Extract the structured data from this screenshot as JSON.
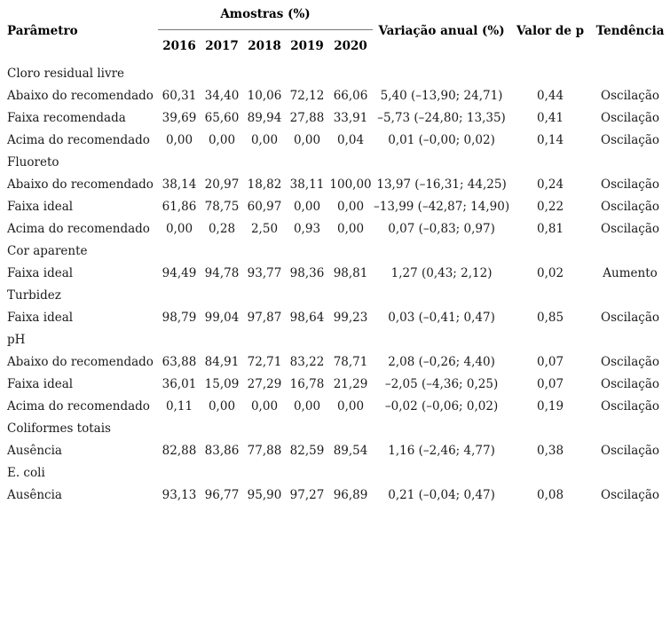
{
  "table": {
    "header": {
      "param": "Parâmetro",
      "amostras": "Amostras (%)",
      "years": [
        "2016",
        "2017",
        "2018",
        "2019",
        "2020"
      ],
      "variacao": "Variação anual (%)",
      "valor_p": "Valor de p",
      "tendencia": "Tendência"
    },
    "sections": [
      {
        "name": "Cloro residual livre",
        "rows": [
          {
            "label": "Abaixo do recomendado",
            "values": [
              "60,31",
              "34,40",
              "10,06",
              "72,12",
              "66,06"
            ],
            "variacao": "5,40 (–13,90; 24,71)",
            "p": "0,44",
            "tendencia": "Oscilação"
          },
          {
            "label": "Faixa recomendada",
            "values": [
              "39,69",
              "65,60",
              "89,94",
              "27,88",
              "33,91"
            ],
            "variacao": "–5,73 (–24,80; 13,35)",
            "p": "0,41",
            "tendencia": "Oscilação"
          },
          {
            "label": "Acima do recomendado",
            "values": [
              "0,00",
              "0,00",
              "0,00",
              "0,00",
              "0,04"
            ],
            "variacao": "0,01 (–0,00; 0,02)",
            "p": "0,14",
            "tendencia": "Oscilação"
          }
        ]
      },
      {
        "name": "Fluoreto",
        "rows": [
          {
            "label": "Abaixo do recomendado",
            "values": [
              "38,14",
              "20,97",
              "18,82",
              "38,11",
              "100,00"
            ],
            "variacao": "13,97 (–16,31; 44,25)",
            "p": "0,24",
            "tendencia": "Oscilação"
          },
          {
            "label": "Faixa ideal",
            "values": [
              "61,86",
              "78,75",
              "60,97",
              "0,00",
              "0,00"
            ],
            "variacao": "–13,99 (–42,87; 14,90)",
            "p": "0,22",
            "tendencia": "Oscilação"
          },
          {
            "label": "Acima do recomendado",
            "values": [
              "0,00",
              "0,28",
              "2,50",
              "0,93",
              "0,00"
            ],
            "variacao": "0,07 (–0,83; 0,97)",
            "p": "0,81",
            "tendencia": "Oscilação"
          }
        ]
      },
      {
        "name": "Cor aparente",
        "rows": [
          {
            "label": "Faixa ideal",
            "values": [
              "94,49",
              "94,78",
              "93,77",
              "98,36",
              "98,81"
            ],
            "variacao": "1,27 (0,43; 2,12)",
            "p": "0,02",
            "tendencia": "Aumento"
          }
        ]
      },
      {
        "name": "Turbidez",
        "rows": [
          {
            "label": "Faixa ideal",
            "values": [
              "98,79",
              "99,04",
              "97,87",
              "98,64",
              "99,23"
            ],
            "variacao": "0,03 (–0,41; 0,47)",
            "p": "0,85",
            "tendencia": "Oscilação"
          }
        ]
      },
      {
        "name": "pH",
        "rows": [
          {
            "label": "Abaixo do recomendado",
            "values": [
              "63,88",
              "84,91",
              "72,71",
              "83,22",
              "78,71"
            ],
            "variacao": "2,08 (–0,26; 4,40)",
            "p": "0,07",
            "tendencia": "Oscilação"
          },
          {
            "label": "Faixa ideal",
            "values": [
              "36,01",
              "15,09",
              "27,29",
              "16,78",
              "21,29"
            ],
            "variacao": "–2,05 (–4,36; 0,25)",
            "p": "0,07",
            "tendencia": "Oscilação"
          },
          {
            "label": "Acima do recomendado",
            "values": [
              "0,11",
              "0,00",
              "0,00",
              "0,00",
              "0,00"
            ],
            "variacao": "–0,02 (–0,06; 0,02)",
            "p": "0,19",
            "tendencia": "Oscilação"
          }
        ]
      },
      {
        "name": "Coliformes totais",
        "rows": [
          {
            "label": "Ausência",
            "values": [
              "82,88",
              "83,86",
              "77,88",
              "82,59",
              "89,54"
            ],
            "variacao": "1,16 (–2,46; 4,77)",
            "p": "0,38",
            "tendencia": "Oscilação"
          }
        ]
      },
      {
        "name": "E. coli",
        "rows": [
          {
            "label": "Ausência",
            "values": [
              "93,13",
              "96,77",
              "95,90",
              "97,27",
              "96,89"
            ],
            "variacao": "0,21 (–0,04; 0,47)",
            "p": "0,08",
            "tendencia": "Oscilação"
          }
        ]
      }
    ]
  }
}
